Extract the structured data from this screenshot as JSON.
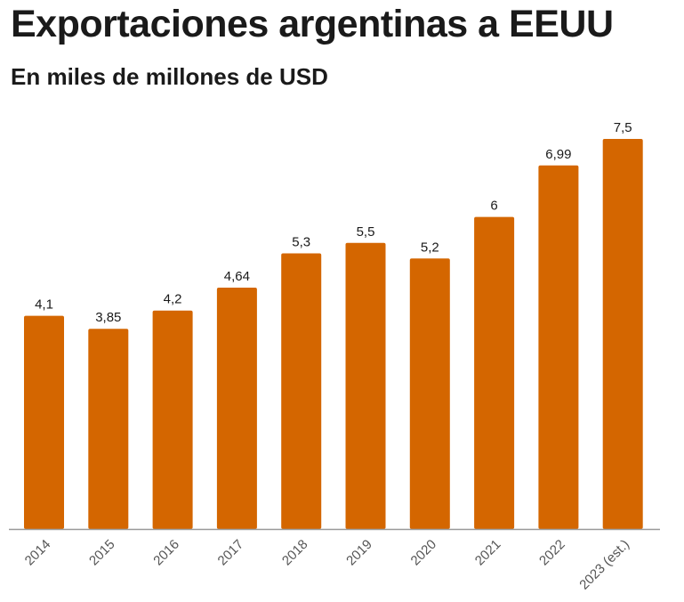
{
  "chart_data": {
    "type": "bar",
    "title": "Exportaciones argentinas a EEUU",
    "subtitle": "En miles de millones de USD",
    "categories": [
      "2014",
      "2015",
      "2016",
      "2017",
      "2018",
      "2019",
      "2020",
      "2021",
      "2022",
      "2023 (est.)"
    ],
    "values": [
      4.1,
      3.85,
      4.2,
      4.64,
      5.3,
      5.5,
      5.2,
      6,
      6.99,
      7.5
    ],
    "data_labels": [
      "4,1",
      "3,85",
      "4,2",
      "4,64",
      "5,3",
      "5,5",
      "5,2",
      "6",
      "6,99",
      "7,5"
    ],
    "ylim": [
      0,
      7.5
    ],
    "bar_color": "#d46600",
    "axis_color": "#999999",
    "grid": false,
    "xlabel": "",
    "ylabel": ""
  }
}
